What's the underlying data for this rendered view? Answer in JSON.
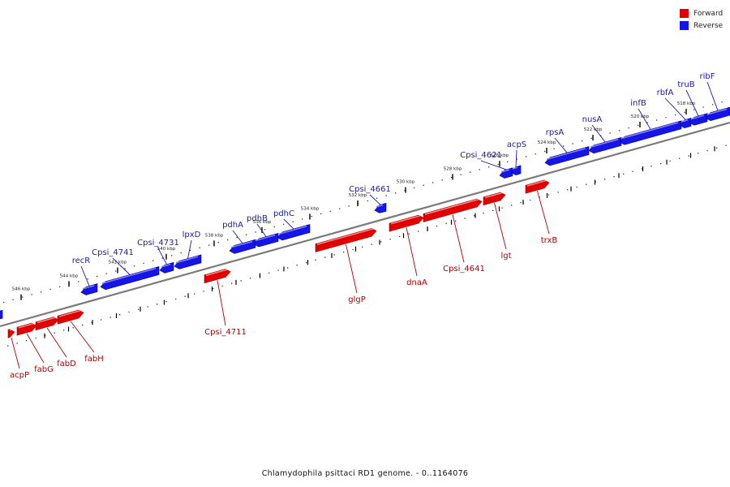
{
  "legend": {
    "forward_label": "Forward",
    "reverse_label": "Reverse",
    "forward_color": "#e00000",
    "reverse_color": "#1515e6"
  },
  "caption": "Chlamydophila psittaci RD1 genome. - 0..1164076",
  "colors": {
    "forward": "#e00000",
    "forward_top": "#ff8080",
    "forward_dark": "#a00000",
    "reverse": "#1515e6",
    "reverse_top": "#8080ff",
    "reverse_dark": "#0000a0",
    "backbone": "#7a7a7a",
    "label_forward": "#b00000",
    "label_reverse": "#1a1aa8"
  },
  "ticks": [
    "546 kbp",
    "544 kbp",
    "542 kbp",
    "540 kbp",
    "538 kbp",
    "536 kbp",
    "534 kbp",
    "532 kbp",
    "530 kbp",
    "528 kbp",
    "526 kbp",
    "524 kbp",
    "522 kbp",
    "520 kbp",
    "518 kbp"
  ],
  "reverse_genes": [
    "recR",
    "Cpsi_4741",
    "Cpsi_4731",
    "lpxD",
    "pdhA",
    "pdhB",
    "pdhC",
    "Cpsi_4661",
    "Cpsi_4621",
    "acpS",
    "rpsA",
    "nusA",
    "infB",
    "rbfA",
    "truB",
    "ribF"
  ],
  "forward_genes": [
    "acpP",
    "fabG",
    "fabD",
    "fabH",
    "Cpsi_4711",
    "glgP",
    "dnaA",
    "Cpsi_4641",
    "lgt",
    "trxB"
  ]
}
